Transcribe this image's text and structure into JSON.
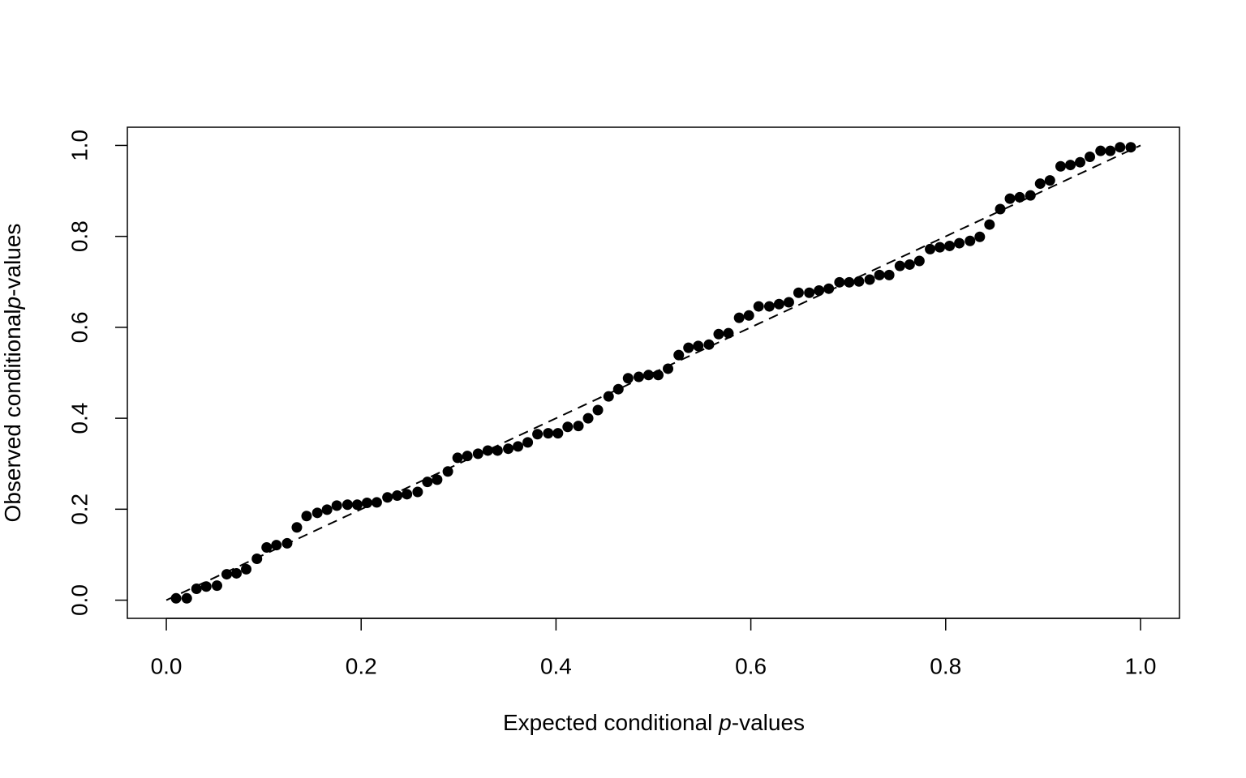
{
  "chart_data": {
    "type": "scatter",
    "xlabel": [
      "Expected conditional ",
      "p",
      "-values"
    ],
    "ylabel": [
      "Observed conditional",
      "p",
      "-values"
    ],
    "x": [
      0.01,
      0.021,
      0.031,
      0.041,
      0.052,
      0.062,
      0.072,
      0.082,
      0.093,
      0.103,
      0.113,
      0.124,
      0.134,
      0.144,
      0.155,
      0.165,
      0.175,
      0.186,
      0.196,
      0.206,
      0.216,
      0.227,
      0.237,
      0.247,
      0.258,
      0.268,
      0.278,
      0.289,
      0.299,
      0.309,
      0.32,
      0.33,
      0.34,
      0.351,
      0.361,
      0.371,
      0.381,
      0.392,
      0.402,
      0.412,
      0.423,
      0.433,
      0.443,
      0.454,
      0.464,
      0.474,
      0.485,
      0.495,
      0.505,
      0.515,
      0.526,
      0.536,
      0.546,
      0.557,
      0.567,
      0.577,
      0.588,
      0.598,
      0.608,
      0.619,
      0.629,
      0.639,
      0.649,
      0.66,
      0.67,
      0.68,
      0.691,
      0.701,
      0.711,
      0.722,
      0.732,
      0.742,
      0.753,
      0.763,
      0.773,
      0.784,
      0.794,
      0.804,
      0.814,
      0.825,
      0.835,
      0.845,
      0.856,
      0.866,
      0.876,
      0.887,
      0.897,
      0.907,
      0.918,
      0.928,
      0.938,
      0.948,
      0.959,
      0.969,
      0.979,
      0.99
    ],
    "values": [
      0.004,
      0.004,
      0.025,
      0.03,
      0.032,
      0.057,
      0.059,
      0.068,
      0.091,
      0.116,
      0.121,
      0.125,
      0.16,
      0.185,
      0.192,
      0.199,
      0.208,
      0.21,
      0.21,
      0.214,
      0.215,
      0.226,
      0.23,
      0.233,
      0.238,
      0.26,
      0.265,
      0.283,
      0.313,
      0.317,
      0.322,
      0.329,
      0.329,
      0.333,
      0.338,
      0.347,
      0.365,
      0.367,
      0.367,
      0.381,
      0.383,
      0.4,
      0.418,
      0.448,
      0.464,
      0.488,
      0.491,
      0.495,
      0.495,
      0.509,
      0.539,
      0.555,
      0.559,
      0.562,
      0.585,
      0.587,
      0.621,
      0.626,
      0.646,
      0.646,
      0.651,
      0.655,
      0.676,
      0.676,
      0.681,
      0.685,
      0.699,
      0.699,
      0.701,
      0.705,
      0.715,
      0.715,
      0.735,
      0.738,
      0.746,
      0.772,
      0.776,
      0.779,
      0.785,
      0.79,
      0.799,
      0.826,
      0.86,
      0.883,
      0.886,
      0.89,
      0.916,
      0.923,
      0.954,
      0.957,
      0.963,
      0.975,
      0.988,
      0.988,
      0.996,
      0.996
    ],
    "color": "#000000",
    "reference_line": {
      "x": [
        0,
        1
      ],
      "y": [
        0,
        1
      ]
    },
    "xlim": [
      -0.04,
      1.04
    ],
    "ylim": [
      -0.04,
      1.04
    ],
    "xticks": [
      {
        "value": 0,
        "label": "0.0"
      },
      0.2,
      0.4,
      0.6,
      0.8,
      {
        "value": 1,
        "label": "1.0"
      }
    ],
    "yticks": [
      {
        "value": 0,
        "label": "0.0"
      },
      0.2,
      0.4,
      0.6,
      0.8,
      {
        "value": 1,
        "label": "1.0"
      }
    ],
    "grid": false
  }
}
